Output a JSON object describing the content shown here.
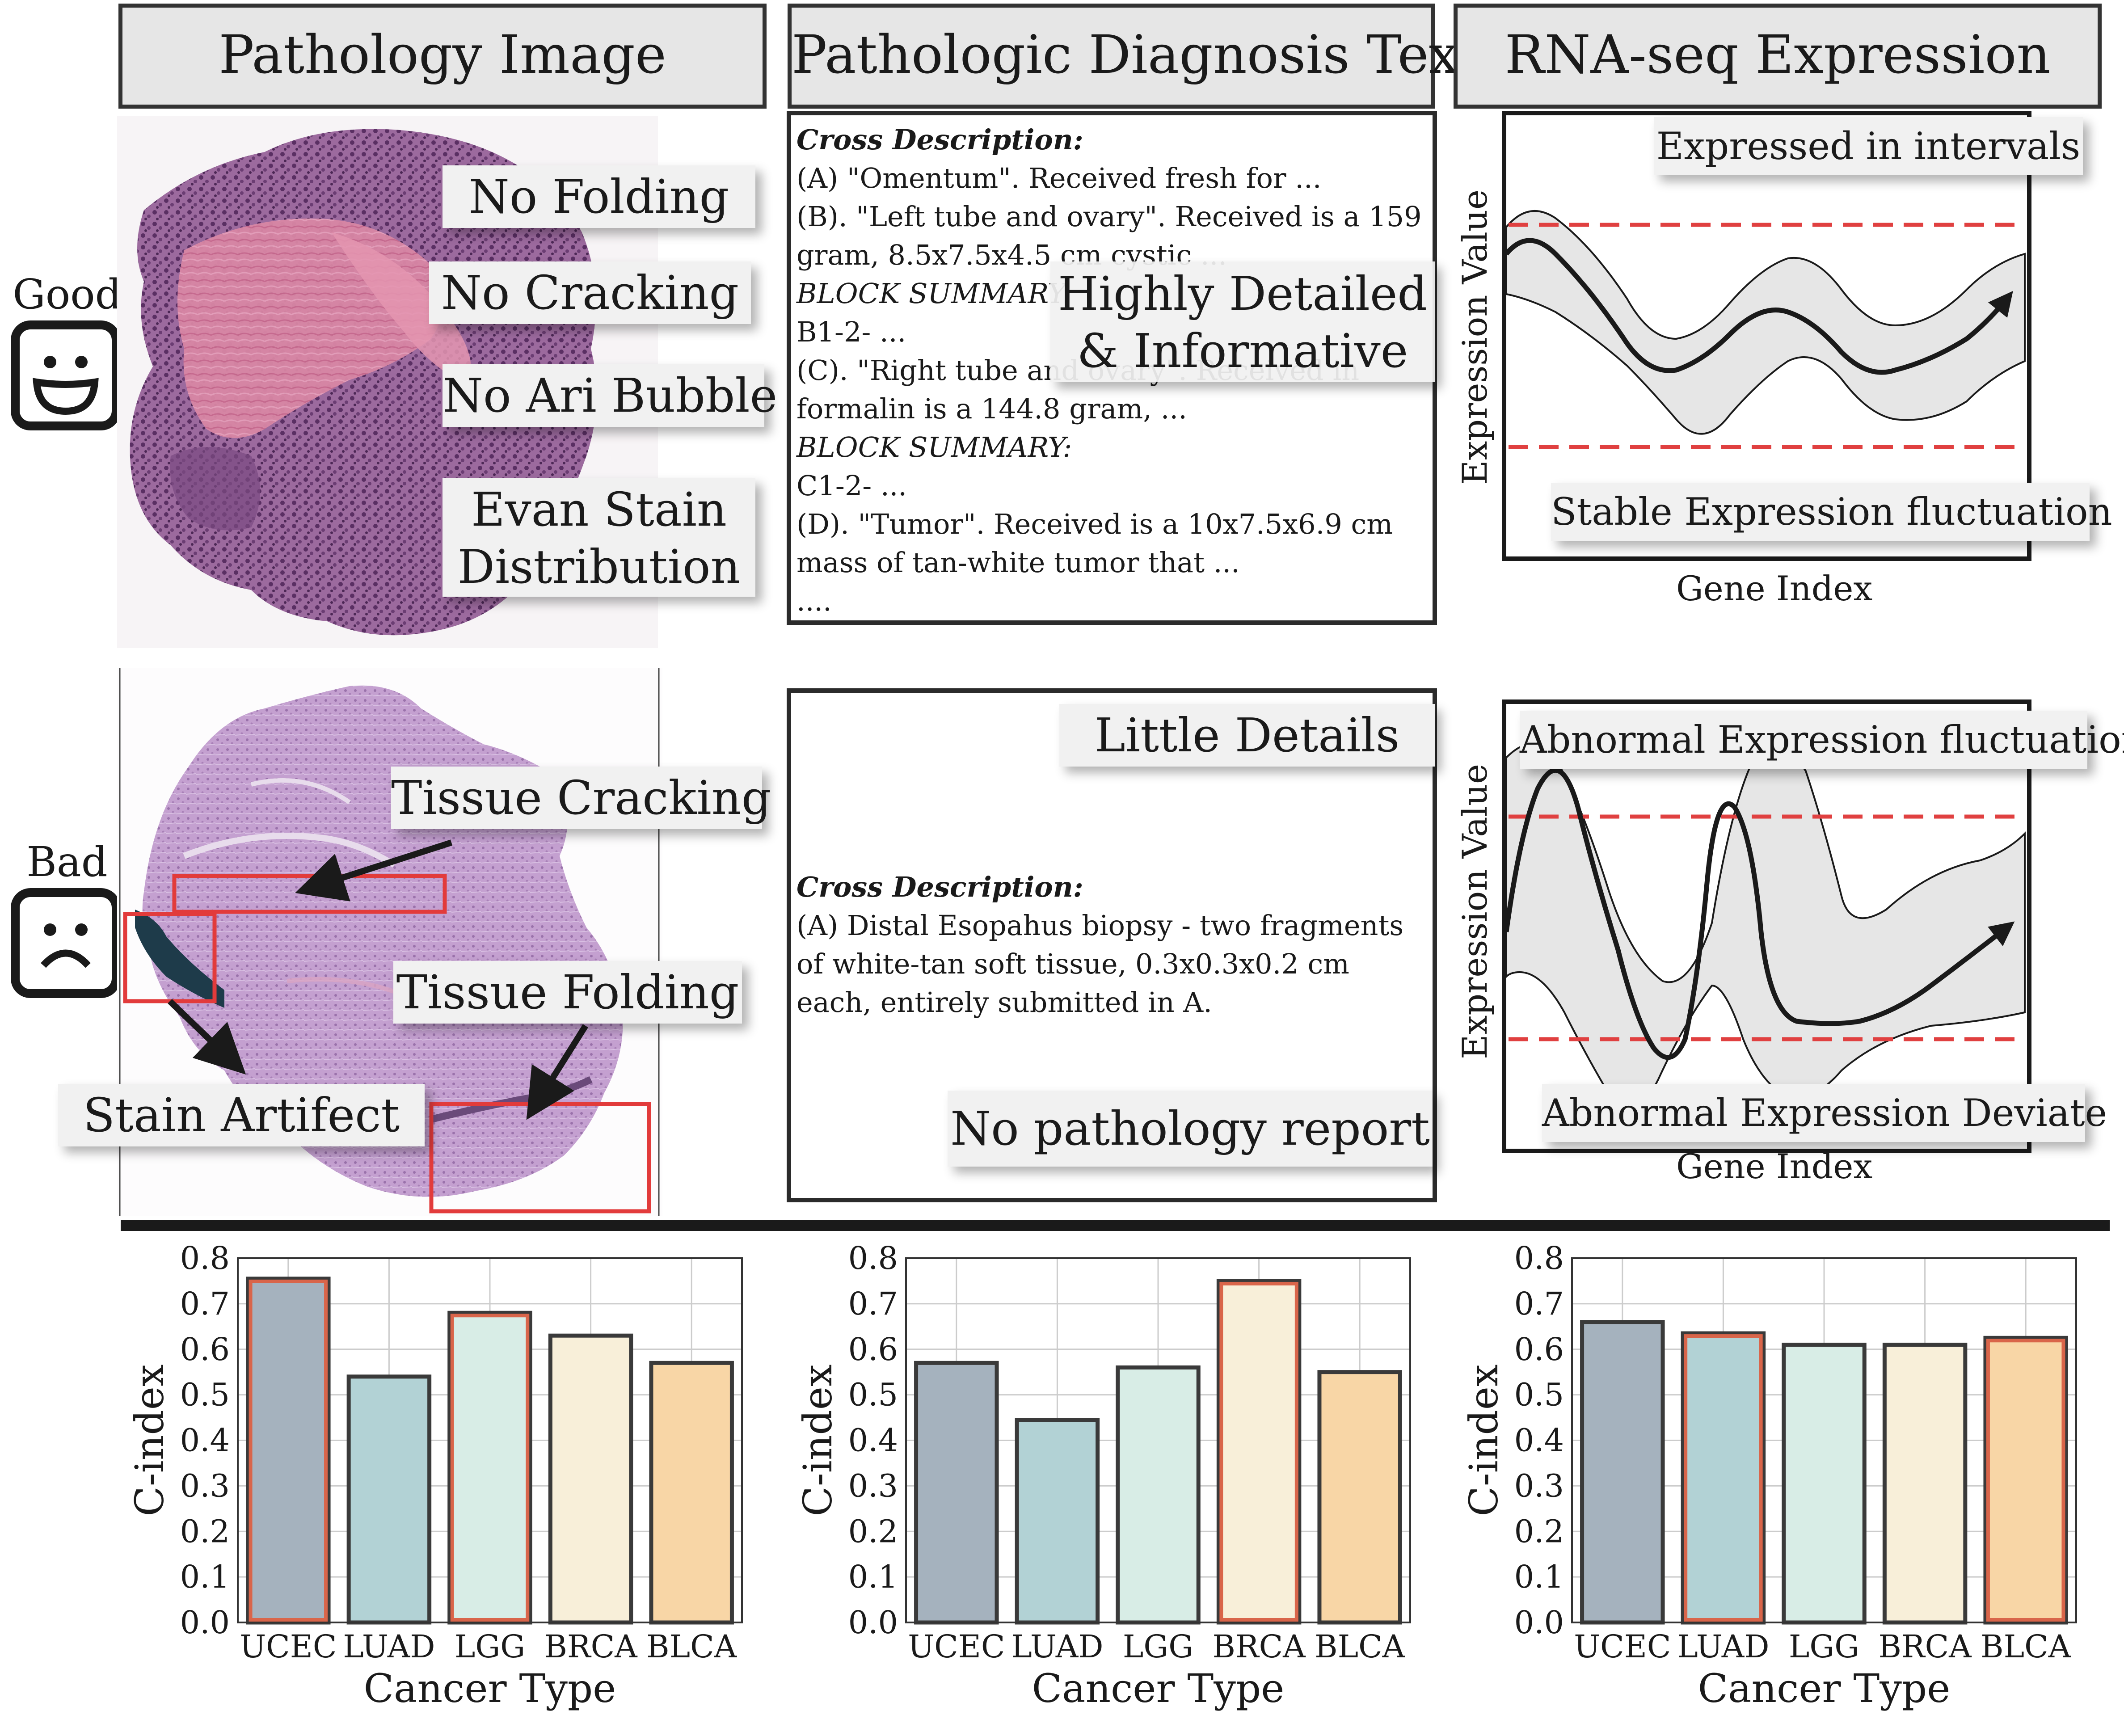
{
  "headers": {
    "col1": "Pathology Image",
    "col2": "Pathologic Diagnosis Text",
    "col3": "RNA-seq Expression"
  },
  "faces": {
    "good": "Good",
    "bad": "Bad"
  },
  "image_good": {
    "tags": [
      "No Folding",
      "No Cracking",
      "No Ari Bubble",
      "Evan Stain",
      "Distribution"
    ]
  },
  "image_bad": {
    "tissue_cracking": "Tissue Cracking",
    "tissue_folding": "Tissue Folding",
    "stain_artifect": "Stain Artifect"
  },
  "text_good": {
    "heading": "Cross Description:",
    "l1": "(A) \"Omentum\". Received fresh for ...",
    "l2": "(B). \"Left tube and ovary\". Received is a 159",
    "l3": "gram, 8.5x7.5x4.5 cm cystic ...",
    "l4": "BLOCK SUMMARY:",
    "l5": "B1-2- ...",
    "l6": "(C). \"Right tube and ovary\". Received in",
    "l7": "formalin is a 144.8 gram, ...",
    "l8": "BLOCK SUMMARY:",
    "l9": "C1-2- ...",
    "l10": "(D). \"Tumor\". Received is a 10x7.5x6.9 cm",
    "l11": "mass of tan-white tumor that ...",
    "l12": "....",
    "tag1": "Highly Detailed",
    "tag2": "& Informative"
  },
  "text_bad": {
    "tag_top": "Little Details",
    "heading": "Cross Description:",
    "l1": "(A) Distal Esopahus biopsy - two fragments",
    "l2": "of white-tan soft tissue, 0.3x0.3x0.2 cm",
    "l3": "each, entirely submitted in A.",
    "tag_bottom": "No pathology report"
  },
  "rna_good": {
    "top_tag": "Expressed in intervals",
    "bottom_tag": "Stable Expression fluctuation",
    "ylabel": "Expression Value",
    "xlabel": "Gene Index"
  },
  "rna_bad": {
    "top_tag": "Abnormal Expression fluctuation",
    "bottom_tag": "Abnormal Expression Deviate",
    "ylabel": "Expression Value",
    "xlabel": "Gene Index"
  },
  "colors": {
    "bar_fills": [
      "#a5b2be",
      "#b2d2d5",
      "#d8ede6",
      "#f8efd9",
      "#f8d6a6"
    ],
    "bar_edge": "#3a3a3a",
    "highlight_edge": "#d9654a",
    "threshold_red": "#e04040",
    "box_red": "#e23b3b"
  },
  "chart_data": [
    {
      "type": "bar",
      "title": "",
      "categories": [
        "UCEC",
        "LUAD",
        "LGG",
        "BRCA",
        "BLCA"
      ],
      "values": [
        0.755,
        0.54,
        0.68,
        0.63,
        0.57
      ],
      "highlighted": [
        "UCEC",
        "LGG"
      ],
      "ylabel": "C-index",
      "xlabel": "Cancer Type",
      "ylim": [
        0.0,
        0.8
      ],
      "yticks": [
        "0.0",
        "0.1",
        "0.2",
        "0.3",
        "0.4",
        "0.5",
        "0.6",
        "0.7",
        "0.8"
      ],
      "grid": true
    },
    {
      "type": "bar",
      "title": "",
      "categories": [
        "UCEC",
        "LUAD",
        "LGG",
        "BRCA",
        "BLCA"
      ],
      "values": [
        0.57,
        0.445,
        0.56,
        0.75,
        0.55
      ],
      "highlighted": [
        "BRCA"
      ],
      "ylabel": "C-index",
      "xlabel": "Cancer Type",
      "ylim": [
        0.0,
        0.8
      ],
      "yticks": [
        "0.0",
        "0.1",
        "0.2",
        "0.3",
        "0.4",
        "0.5",
        "0.6",
        "0.7",
        "0.8"
      ],
      "grid": true
    },
    {
      "type": "bar",
      "title": "",
      "categories": [
        "UCEC",
        "LUAD",
        "LGG",
        "BRCA",
        "BLCA"
      ],
      "values": [
        0.66,
        0.635,
        0.61,
        0.61,
        0.625
      ],
      "highlighted": [
        "LUAD",
        "BLCA"
      ],
      "ylabel": "C-index",
      "xlabel": "Cancer Type",
      "ylim": [
        0.0,
        0.8
      ],
      "yticks": [
        "0.0",
        "0.1",
        "0.2",
        "0.3",
        "0.4",
        "0.5",
        "0.6",
        "0.7",
        "0.8"
      ],
      "grid": true
    }
  ]
}
